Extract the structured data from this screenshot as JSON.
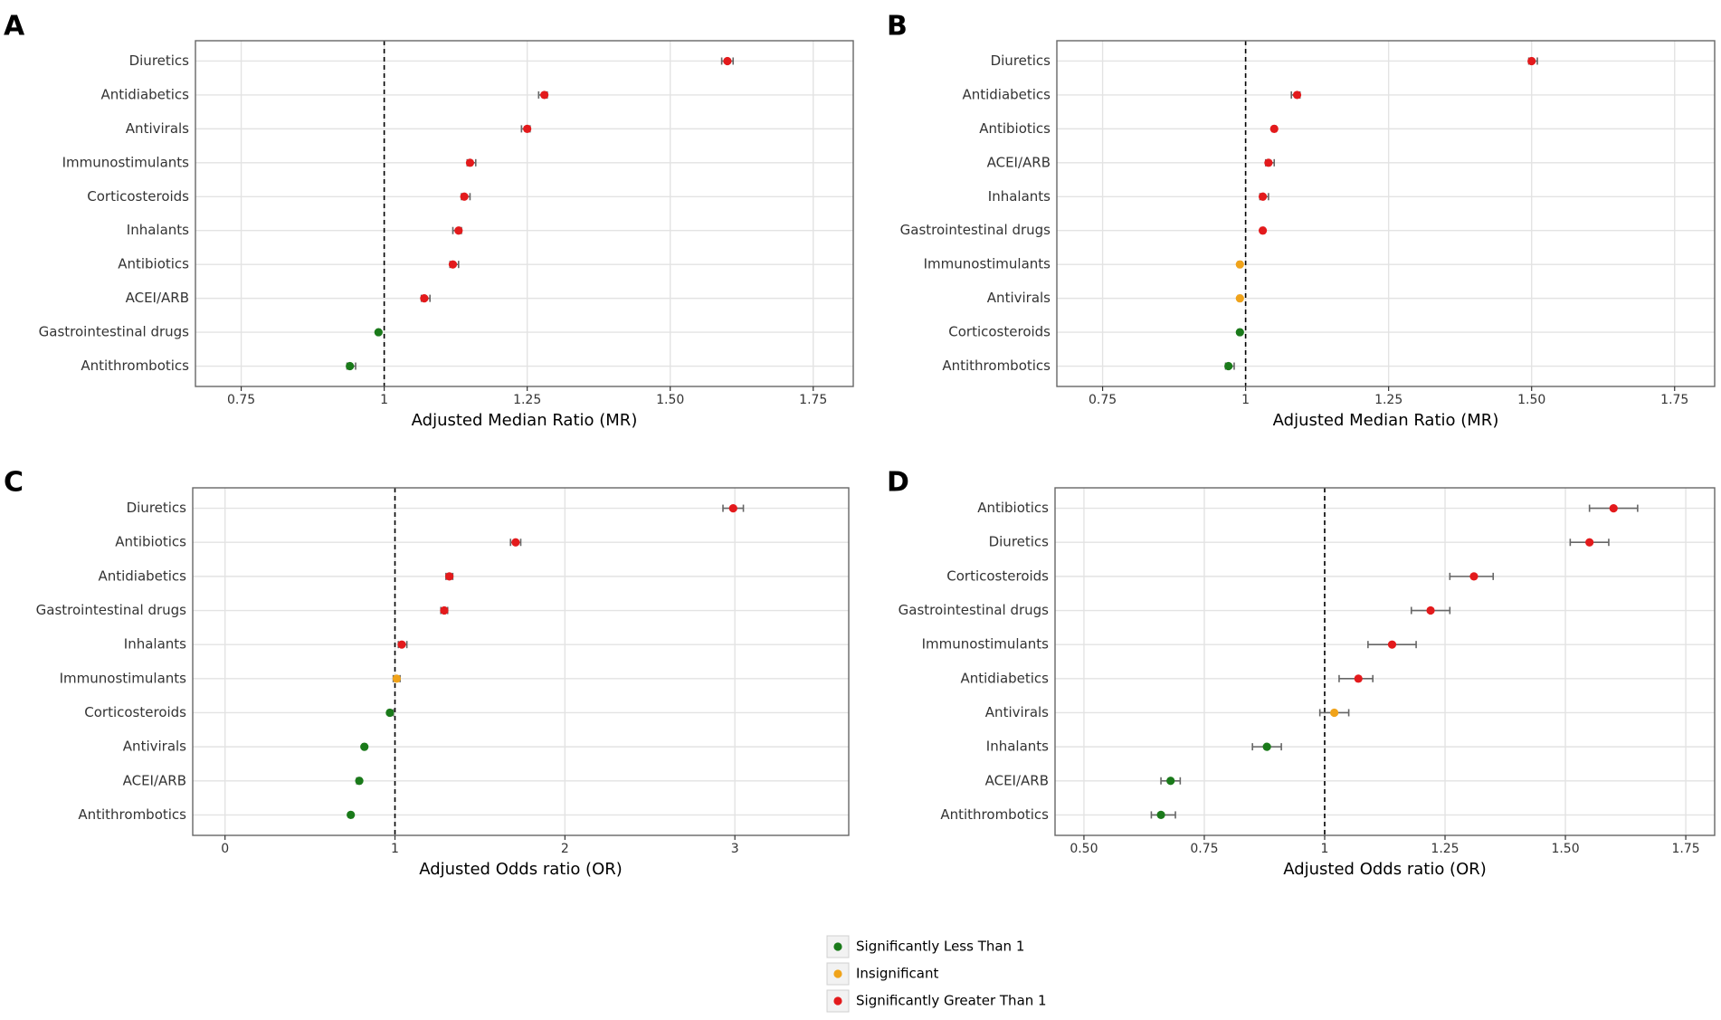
{
  "colors": {
    "significantly_less": "#1a7a1a",
    "insignificant": "#f0a31a",
    "significantly_greater": "#e31a1c",
    "errorbar": "#666666",
    "grid": "#e3e3e3",
    "panel_border": "#666666"
  },
  "legend": {
    "items": [
      {
        "key": "less",
        "label": "Significantly Less Than 1"
      },
      {
        "key": "insig",
        "label": "Insignificant"
      },
      {
        "key": "greater",
        "label": "Significantly Greater Than 1"
      }
    ]
  },
  "chart_data": [
    {
      "panel": "A",
      "type": "scatter",
      "title": "",
      "xlabel": "Adjusted Median Ratio (MR)",
      "ylabel": "",
      "xlim": [
        0.67,
        1.82
      ],
      "reference_line": 1,
      "ticks": [
        0.75,
        1,
        1.25,
        1.5,
        1.75
      ],
      "tick_labels": [
        "0.75",
        "1",
        "1.25",
        "1.50",
        "1.75"
      ],
      "points": [
        {
          "label": "Diuretics",
          "value": 1.6,
          "low": 1.59,
          "high": 1.61,
          "significance": "greater"
        },
        {
          "label": "Antidiabetics",
          "value": 1.28,
          "low": 1.27,
          "high": 1.285,
          "significance": "greater"
        },
        {
          "label": "Antivirals",
          "value": 1.25,
          "low": 1.24,
          "high": 1.255,
          "significance": "greater"
        },
        {
          "label": "Immunostimulants",
          "value": 1.15,
          "low": 1.145,
          "high": 1.16,
          "significance": "greater"
        },
        {
          "label": "Corticosteroids",
          "value": 1.14,
          "low": 1.135,
          "high": 1.15,
          "significance": "greater"
        },
        {
          "label": "Inhalants",
          "value": 1.13,
          "low": 1.12,
          "high": 1.135,
          "significance": "greater"
        },
        {
          "label": "Antibiotics",
          "value": 1.12,
          "low": 1.115,
          "high": 1.13,
          "significance": "greater"
        },
        {
          "label": "ACEI/ARB",
          "value": 1.07,
          "low": 1.065,
          "high": 1.08,
          "significance": "greater"
        },
        {
          "label": "Gastrointestinal drugs",
          "value": 0.99,
          "low": 0.988,
          "high": 0.993,
          "significance": "less"
        },
        {
          "label": "Antithrombotics",
          "value": 0.94,
          "low": 0.935,
          "high": 0.95,
          "significance": "less"
        }
      ]
    },
    {
      "panel": "B",
      "type": "scatter",
      "title": "",
      "xlabel": "Adjusted Median Ratio (MR)",
      "ylabel": "",
      "xlim": [
        0.67,
        1.82
      ],
      "reference_line": 1,
      "ticks": [
        0.75,
        1,
        1.25,
        1.5,
        1.75
      ],
      "tick_labels": [
        "0.75",
        "1",
        "1.25",
        "1.50",
        "1.75"
      ],
      "points": [
        {
          "label": "Diuretics",
          "value": 1.5,
          "low": 1.495,
          "high": 1.51,
          "significance": "greater"
        },
        {
          "label": "Antidiabetics",
          "value": 1.09,
          "low": 1.08,
          "high": 1.095,
          "significance": "greater"
        },
        {
          "label": "Antibiotics",
          "value": 1.05,
          "low": 1.047,
          "high": 1.053,
          "significance": "greater"
        },
        {
          "label": "ACEI/ARB",
          "value": 1.04,
          "low": 1.035,
          "high": 1.05,
          "significance": "greater"
        },
        {
          "label": "Inhalants",
          "value": 1.03,
          "low": 1.025,
          "high": 1.04,
          "significance": "greater"
        },
        {
          "label": "Gastrointestinal drugs",
          "value": 1.03,
          "low": 1.027,
          "high": 1.033,
          "significance": "greater"
        },
        {
          "label": "Immunostimulants",
          "value": 0.99,
          "low": 0.987,
          "high": 0.993,
          "significance": "insignificant"
        },
        {
          "label": "Antivirals",
          "value": 0.99,
          "low": 0.987,
          "high": 0.993,
          "significance": "insignificant"
        },
        {
          "label": "Corticosteroids",
          "value": 0.99,
          "low": 0.987,
          "high": 0.993,
          "significance": "less"
        },
        {
          "label": "Antithrombotics",
          "value": 0.97,
          "low": 0.965,
          "high": 0.98,
          "significance": "less"
        }
      ]
    },
    {
      "panel": "C",
      "type": "scatter",
      "title": "",
      "xlabel": "Adjusted Odds ratio (OR)",
      "ylabel": "",
      "xlim": [
        -0.19,
        3.67
      ],
      "reference_line": 1,
      "ticks": [
        0,
        1,
        2,
        3
      ],
      "tick_labels": [
        "0",
        "1",
        "2",
        "3"
      ],
      "points": [
        {
          "label": "Diuretics",
          "value": 2.99,
          "low": 2.93,
          "high": 3.05,
          "significance": "greater"
        },
        {
          "label": "Antibiotics",
          "value": 1.71,
          "low": 1.68,
          "high": 1.74,
          "significance": "greater"
        },
        {
          "label": "Antidiabetics",
          "value": 1.32,
          "low": 1.3,
          "high": 1.34,
          "significance": "greater"
        },
        {
          "label": "Gastrointestinal drugs",
          "value": 1.29,
          "low": 1.27,
          "high": 1.31,
          "significance": "greater"
        },
        {
          "label": "Inhalants",
          "value": 1.04,
          "low": 1.02,
          "high": 1.07,
          "significance": "greater"
        },
        {
          "label": "Immunostimulants",
          "value": 1.01,
          "low": 0.99,
          "high": 1.03,
          "significance": "insignificant"
        },
        {
          "label": "Corticosteroids",
          "value": 0.97,
          "low": 0.96,
          "high": 0.99,
          "significance": "less"
        },
        {
          "label": "Antivirals",
          "value": 0.82,
          "low": 0.81,
          "high": 0.83,
          "significance": "less"
        },
        {
          "label": "ACEI/ARB",
          "value": 0.79,
          "low": 0.775,
          "high": 0.8,
          "significance": "less"
        },
        {
          "label": "Antithrombotics",
          "value": 0.74,
          "low": 0.735,
          "high": 0.75,
          "significance": "less"
        }
      ]
    },
    {
      "panel": "D",
      "type": "scatter",
      "title": "",
      "xlabel": "Adjusted Odds ratio (OR)",
      "ylabel": "",
      "xlim": [
        0.44,
        1.81
      ],
      "reference_line": 1,
      "ticks": [
        0.5,
        0.75,
        1,
        1.25,
        1.5,
        1.75
      ],
      "tick_labels": [
        "0.50",
        "0.75",
        "1",
        "1.25",
        "1.50",
        "1.75"
      ],
      "points": [
        {
          "label": "Antibiotics",
          "value": 1.6,
          "low": 1.55,
          "high": 1.65,
          "significance": "greater"
        },
        {
          "label": "Diuretics",
          "value": 1.55,
          "low": 1.51,
          "high": 1.59,
          "significance": "greater"
        },
        {
          "label": "Corticosteroids",
          "value": 1.31,
          "low": 1.26,
          "high": 1.35,
          "significance": "greater"
        },
        {
          "label": "Gastrointestinal drugs",
          "value": 1.22,
          "low": 1.18,
          "high": 1.26,
          "significance": "greater"
        },
        {
          "label": "Immunostimulants",
          "value": 1.14,
          "low": 1.09,
          "high": 1.19,
          "significance": "greater"
        },
        {
          "label": "Antidiabetics",
          "value": 1.07,
          "low": 1.03,
          "high": 1.1,
          "significance": "greater"
        },
        {
          "label": "Antivirals",
          "value": 1.02,
          "low": 0.99,
          "high": 1.05,
          "significance": "insignificant"
        },
        {
          "label": "Inhalants",
          "value": 0.88,
          "low": 0.85,
          "high": 0.91,
          "significance": "less"
        },
        {
          "label": "ACEI/ARB",
          "value": 0.68,
          "low": 0.66,
          "high": 0.7,
          "significance": "less"
        },
        {
          "label": "Antithrombotics",
          "value": 0.66,
          "low": 0.64,
          "high": 0.69,
          "significance": "less"
        }
      ]
    }
  ]
}
